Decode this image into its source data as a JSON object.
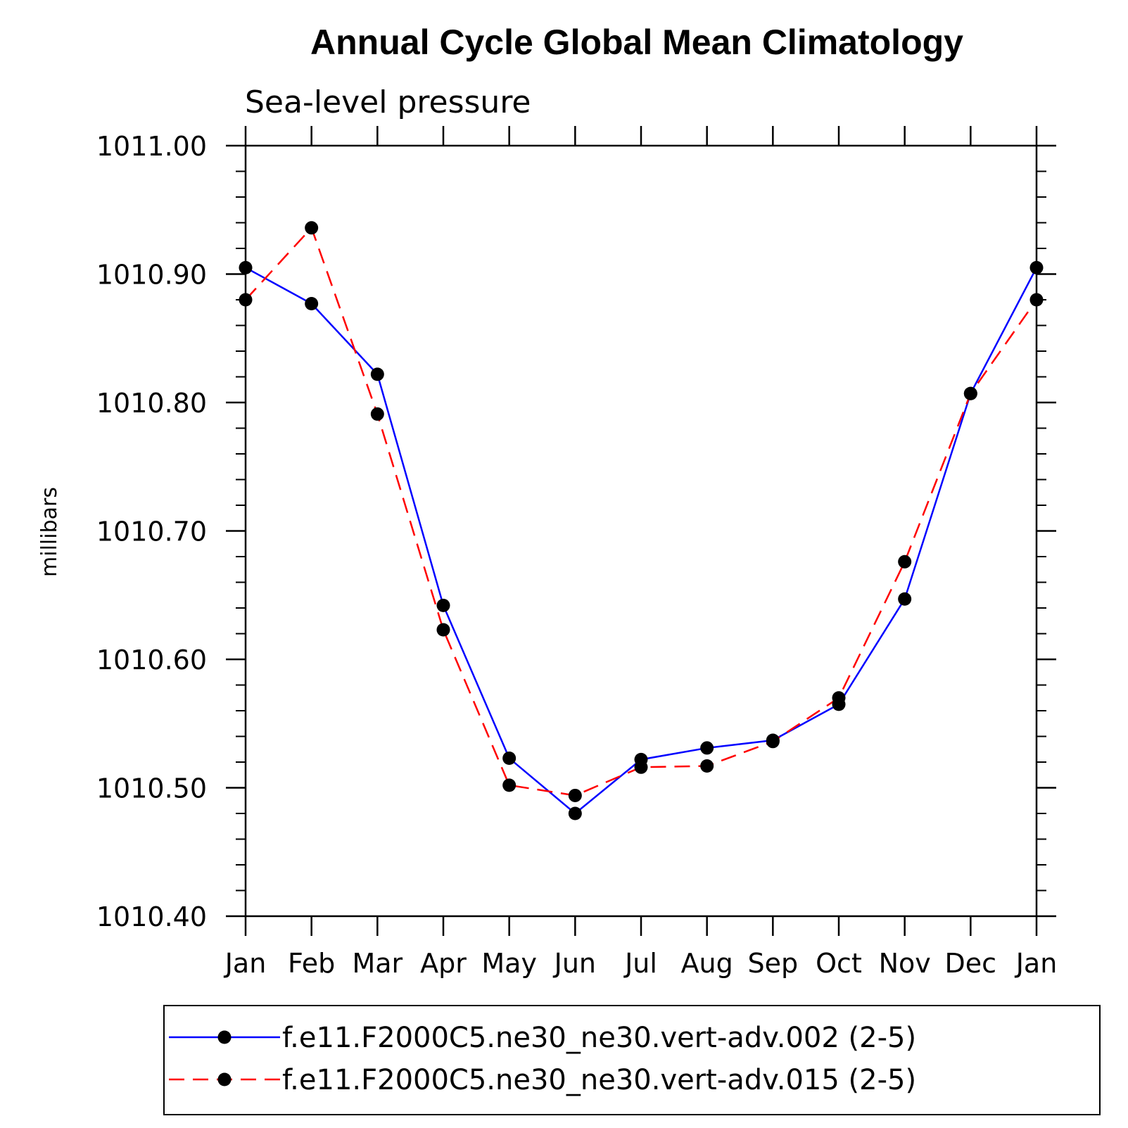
{
  "chart_data": {
    "type": "line",
    "title": "Annual Cycle Global Mean Climatology",
    "subtitle": "Sea-level pressure",
    "ylabel": "millibars",
    "xlabel": "",
    "categories": [
      "Jan",
      "Feb",
      "Mar",
      "Apr",
      "May",
      "Jun",
      "Jul",
      "Aug",
      "Sep",
      "Oct",
      "Nov",
      "Dec",
      "Jan"
    ],
    "ylim": [
      1010.4,
      1011.0
    ],
    "yticks": [
      "1010.40",
      "1010.50",
      "1010.60",
      "1010.70",
      "1010.80",
      "1010.90",
      "1011.00"
    ],
    "ytick_values": [
      1010.4,
      1010.5,
      1010.6,
      1010.7,
      1010.8,
      1010.9,
      1011.0
    ],
    "legend_position": "bottom",
    "grid": false,
    "series": [
      {
        "name": "f.e11.F2000C5.ne30_ne30.vert-adv.002 (2-5)",
        "color": "#0000ff",
        "line_style": "solid",
        "marker": "filled-circle",
        "values": [
          1010.905,
          1010.877,
          1010.822,
          1010.642,
          1010.523,
          1010.48,
          1010.522,
          1010.531,
          1010.537,
          1010.565,
          1010.647,
          1010.807,
          1010.905
        ]
      },
      {
        "name": "f.e11.F2000C5.ne30_ne30.vert-adv.015 (2-5)",
        "color": "#ff0000",
        "line_style": "dashed",
        "marker": "filled-circle",
        "values": [
          1010.88,
          1010.936,
          1010.791,
          1010.623,
          1010.502,
          1010.494,
          1010.516,
          1010.517,
          1010.536,
          1010.57,
          1010.676,
          1010.807,
          1010.88
        ]
      }
    ]
  }
}
